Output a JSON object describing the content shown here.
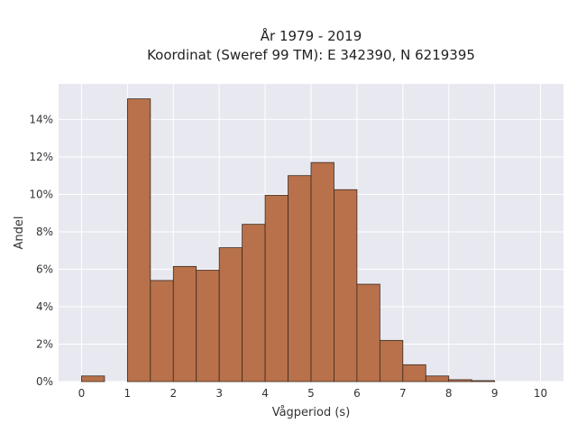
{
  "chart_data": {
    "type": "bar",
    "title_line1": "År 1979 - 2019",
    "title_line2": "Koordinat (Sweref 99 TM): E 342390, N 6219395",
    "xlabel": "Vågperiod (s)",
    "ylabel": "Andel",
    "bin_edges": [
      0,
      0.5,
      1,
      1.5,
      2,
      2.5,
      3,
      3.5,
      4,
      4.5,
      5,
      5.5,
      6,
      6.5,
      7,
      7.5,
      8,
      8.5,
      9,
      9.5,
      10
    ],
    "values": [
      0.3,
      0,
      15.1,
      5.4,
      6.15,
      5.95,
      7.15,
      8.4,
      9.95,
      11.0,
      11.7,
      10.25,
      5.2,
      2.2,
      0.9,
      0.3,
      0.1,
      0.05,
      0,
      0
    ],
    "xlim": [
      -0.5,
      10.5
    ],
    "ylim": [
      0,
      15.9
    ],
    "xticks": [
      "0",
      "1",
      "2",
      "3",
      "4",
      "5",
      "6",
      "7",
      "8",
      "9",
      "10"
    ],
    "yticks": [
      "0%",
      "2%",
      "4%",
      "6%",
      "8%",
      "10%",
      "12%",
      "14%"
    ],
    "grid": true,
    "colors": {
      "bar": "#b8714a",
      "bar_edge": "#3a2a20",
      "plot_bg": "#e8e8f0",
      "grid": "#ffffff"
    }
  }
}
